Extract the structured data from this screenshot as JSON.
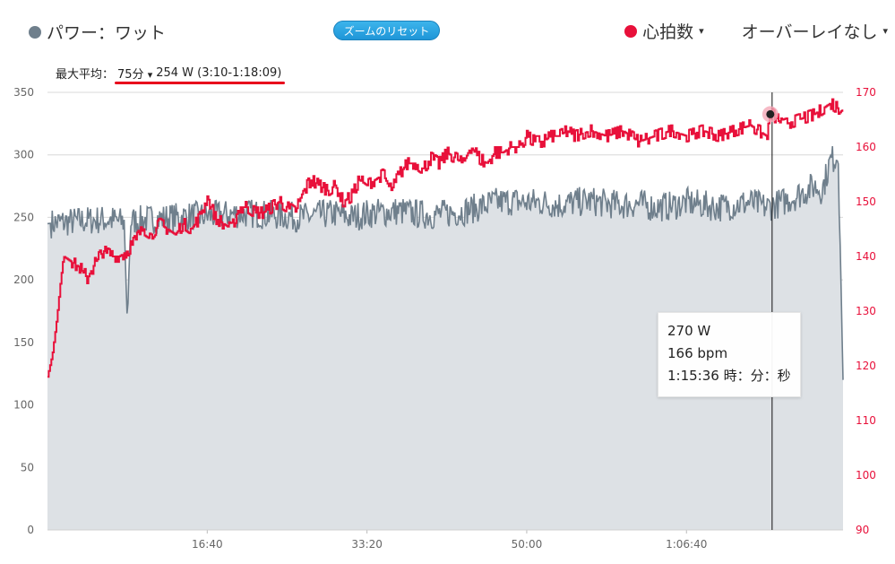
{
  "legend": {
    "power_label": "パワー：ワット",
    "power_color": "#6f7f8c",
    "hr_label": "心拍数",
    "hr_color": "#e8103a",
    "overlay_label": "オーバーレイなし",
    "caret": "▾"
  },
  "reset_button": "ズームのリセット",
  "max_avg": {
    "label": "最大平均：",
    "duration": "75分",
    "caret": "▾",
    "value": "254 W (3:10-1:18:09)"
  },
  "tooltip": {
    "power": "270 W",
    "hr": "166 bpm",
    "time": "1:15:36 時：分：秒"
  },
  "chart_data": {
    "type": "line",
    "x_unit": "seconds",
    "xlim": [
      0,
      4980
    ],
    "x_tick_labels": [
      {
        "value": 1000,
        "label": "16:40"
      },
      {
        "value": 2000,
        "label": "33:20"
      },
      {
        "value": 3000,
        "label": "50:00"
      },
      {
        "value": 4000,
        "label": "1:06:40"
      }
    ],
    "y_left": {
      "lim": [
        0,
        350
      ],
      "ticks": [
        0,
        50,
        100,
        150,
        200,
        250,
        300,
        350
      ]
    },
    "y_right": {
      "lim": [
        90,
        170
      ],
      "ticks": [
        90,
        100,
        110,
        120,
        130,
        140,
        150,
        160,
        170
      ]
    },
    "grid": true,
    "cursor_x": 4536,
    "series": [
      {
        "name": "パワー：ワット",
        "axis": "left",
        "style": "area",
        "color": "#6f7f8c",
        "x": [
          0,
          100,
          200,
          300,
          400,
          480,
          500,
          520,
          600,
          700,
          800,
          900,
          1000,
          1100,
          1200,
          1300,
          1400,
          1500,
          1600,
          1700,
          1800,
          1900,
          2000,
          2100,
          2200,
          2300,
          2400,
          2500,
          2600,
          2700,
          2800,
          2900,
          3000,
          3100,
          3200,
          3300,
          3400,
          3500,
          3600,
          3700,
          3800,
          3900,
          4000,
          4100,
          4200,
          4300,
          4400,
          4500,
          4600,
          4700,
          4800,
          4850,
          4900,
          4950,
          4980
        ],
        "values": [
          245,
          246,
          247,
          248,
          248,
          246,
          165,
          247,
          248,
          249,
          250,
          251,
          251,
          252,
          253,
          253,
          252,
          251,
          250,
          252,
          253,
          250,
          253,
          254,
          255,
          253,
          252,
          253,
          255,
          258,
          262,
          263,
          262,
          262,
          260,
          262,
          263,
          261,
          260,
          261,
          258,
          259,
          262,
          260,
          258,
          260,
          262,
          258,
          262,
          268,
          275,
          272,
          295,
          300,
          120
        ]
      },
      {
        "name": "心拍数",
        "axis": "right",
        "style": "line",
        "color": "#e8103a",
        "x": [
          0,
          30,
          60,
          80,
          100,
          150,
          200,
          250,
          300,
          350,
          400,
          450,
          500,
          550,
          600,
          650,
          700,
          750,
          800,
          850,
          900,
          950,
          1000,
          1050,
          1100,
          1150,
          1200,
          1250,
          1300,
          1350,
          1400,
          1450,
          1500,
          1550,
          1600,
          1650,
          1700,
          1750,
          1800,
          1850,
          1900,
          1950,
          2000,
          2050,
          2100,
          2150,
          2200,
          2250,
          2300,
          2350,
          2400,
          2450,
          2500,
          2550,
          2600,
          2650,
          2700,
          2750,
          2800,
          2850,
          2900,
          2950,
          3000,
          3050,
          3100,
          3150,
          3200,
          3250,
          3300,
          3400,
          3500,
          3600,
          3700,
          3800,
          3900,
          4000,
          4100,
          4200,
          4300,
          4400,
          4450,
          4500,
          4536,
          4600,
          4700,
          4800,
          4850,
          4900,
          4950,
          4980
        ],
        "values": [
          118,
          122,
          129,
          135,
          140,
          139,
          138,
          136,
          139,
          141,
          140,
          140,
          141,
          143,
          145,
          144,
          146,
          145,
          144,
          146,
          145,
          147,
          151,
          147,
          146,
          145,
          149,
          149,
          148,
          148,
          149,
          150,
          149,
          148,
          152,
          154,
          153,
          152,
          153,
          150,
          151,
          154,
          153,
          154,
          155,
          152,
          155,
          157,
          157,
          156,
          158,
          157,
          159,
          158,
          157,
          160,
          158,
          157,
          159,
          159,
          160,
          160,
          162,
          161,
          161,
          162,
          162,
          163,
          162,
          163,
          162,
          163,
          161,
          162,
          163,
          162,
          163,
          162,
          163,
          164,
          163,
          162,
          166,
          164,
          165,
          166,
          167,
          168,
          167,
          168
        ]
      }
    ]
  }
}
